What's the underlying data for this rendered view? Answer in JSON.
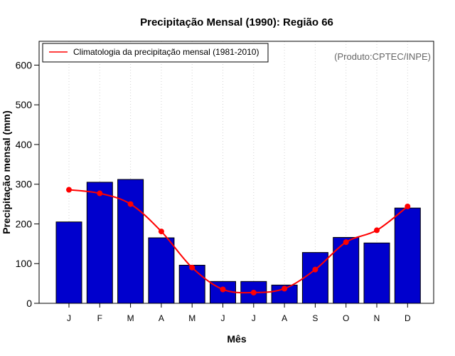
{
  "chart_data": {
    "type": "bar",
    "title": "Precipitação Mensal (1990): Região 66",
    "xlabel": "Mês",
    "ylabel": "Precipitação mensal (mm)",
    "categories": [
      "J",
      "F",
      "M",
      "A",
      "M",
      "J",
      "J",
      "A",
      "S",
      "O",
      "N",
      "D"
    ],
    "ylim": [
      0,
      660
    ],
    "yticks": [
      0,
      100,
      200,
      300,
      400,
      500,
      600
    ],
    "grid": "vertical dotted",
    "series": [
      {
        "name": "Precipitação mensal 1990",
        "kind": "bar",
        "color": "#0000CD",
        "values": [
          205,
          305,
          312,
          165,
          96,
          55,
          55,
          46,
          128,
          166,
          152,
          240
        ]
      },
      {
        "name": "Climatologia da precipitação mensal (1981-2010)",
        "kind": "line",
        "color": "#FF0000",
        "values": [
          286,
          277,
          250,
          181,
          90,
          35,
          27,
          37,
          85,
          154,
          184,
          244
        ]
      }
    ],
    "legend": {
      "position": "top-left",
      "entries": [
        "Climatologia da precipitação mensal (1981-2010)"
      ]
    },
    "annotation": "(Produto:CPTEC/INPE)"
  }
}
